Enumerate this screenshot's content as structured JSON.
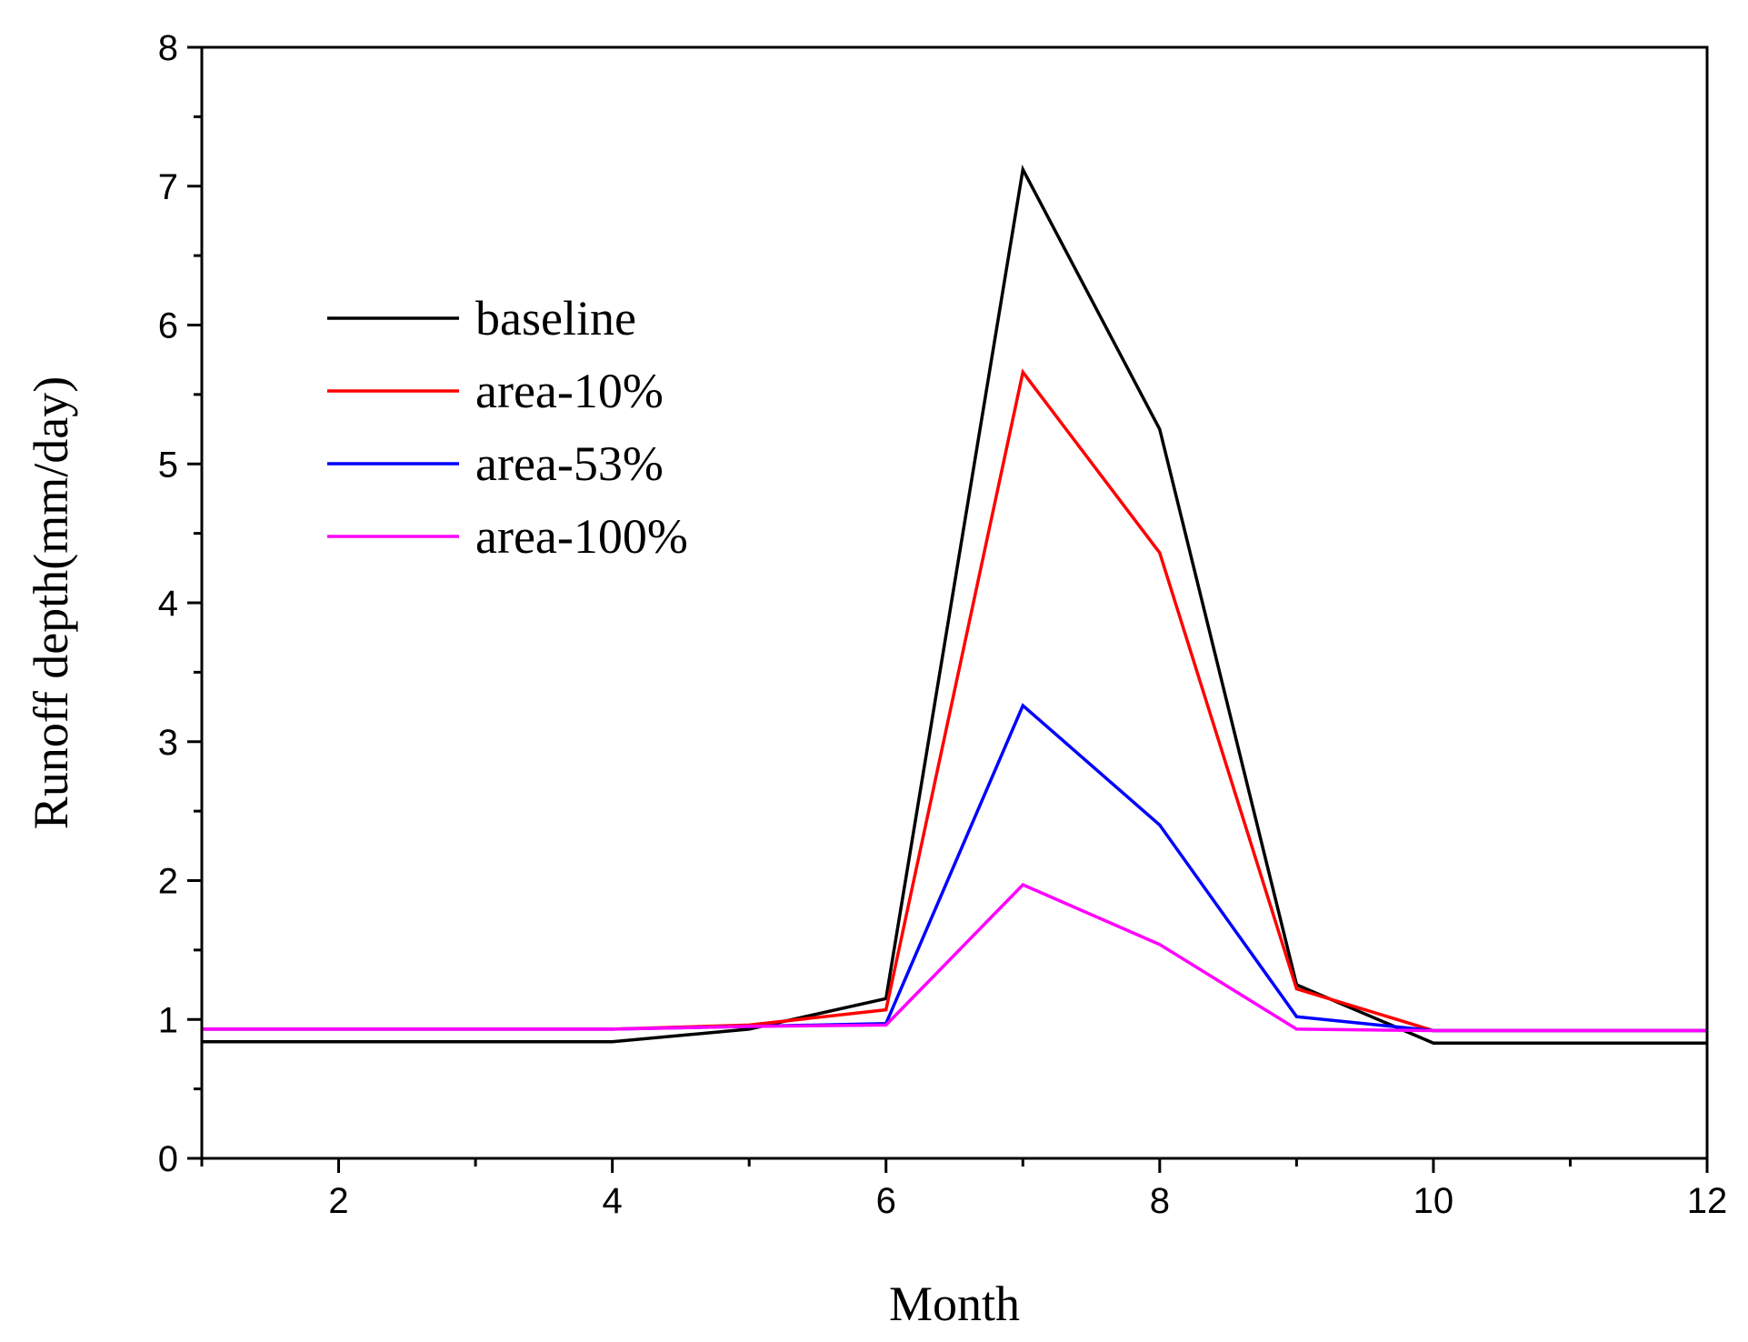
{
  "chart_data": {
    "type": "line",
    "title": "",
    "xlabel": "Month",
    "ylabel": "Runoff depth(mm/day)",
    "xlim": [
      1,
      12
    ],
    "ylim": [
      0,
      8
    ],
    "xticks": [
      2,
      4,
      6,
      8,
      10,
      12
    ],
    "yticks": [
      0,
      1,
      2,
      3,
      4,
      5,
      6,
      7,
      8
    ],
    "xtick_labels": [
      "2",
      "4",
      "6",
      "8",
      "10",
      "12"
    ],
    "ytick_labels": [
      "0",
      "1",
      "2",
      "3",
      "4",
      "5",
      "6",
      "7",
      "8"
    ],
    "x": [
      1,
      2,
      3,
      4,
      5,
      6,
      7,
      8,
      9,
      10,
      11,
      12
    ],
    "legend_position": "upper-left",
    "series": [
      {
        "name": "baseline",
        "color": "#000000",
        "values": [
          0.84,
          0.84,
          0.84,
          0.84,
          0.93,
          1.15,
          7.12,
          5.25,
          1.25,
          0.83,
          0.83,
          0.83
        ]
      },
      {
        "name": "area-10%",
        "color": "#ff0000",
        "values": [
          0.93,
          0.93,
          0.93,
          0.93,
          0.96,
          1.07,
          5.66,
          4.36,
          1.22,
          0.92,
          0.92,
          0.92
        ]
      },
      {
        "name": "area-53%",
        "color": "#0000ff",
        "values": [
          0.93,
          0.93,
          0.93,
          0.93,
          0.95,
          0.97,
          3.26,
          2.4,
          1.02,
          0.92,
          0.92,
          0.92
        ]
      },
      {
        "name": "area-100%",
        "color": "#ff00ff",
        "values": [
          0.93,
          0.93,
          0.93,
          0.93,
          0.95,
          0.96,
          1.97,
          1.54,
          0.93,
          0.92,
          0.92,
          0.92
        ]
      }
    ]
  }
}
